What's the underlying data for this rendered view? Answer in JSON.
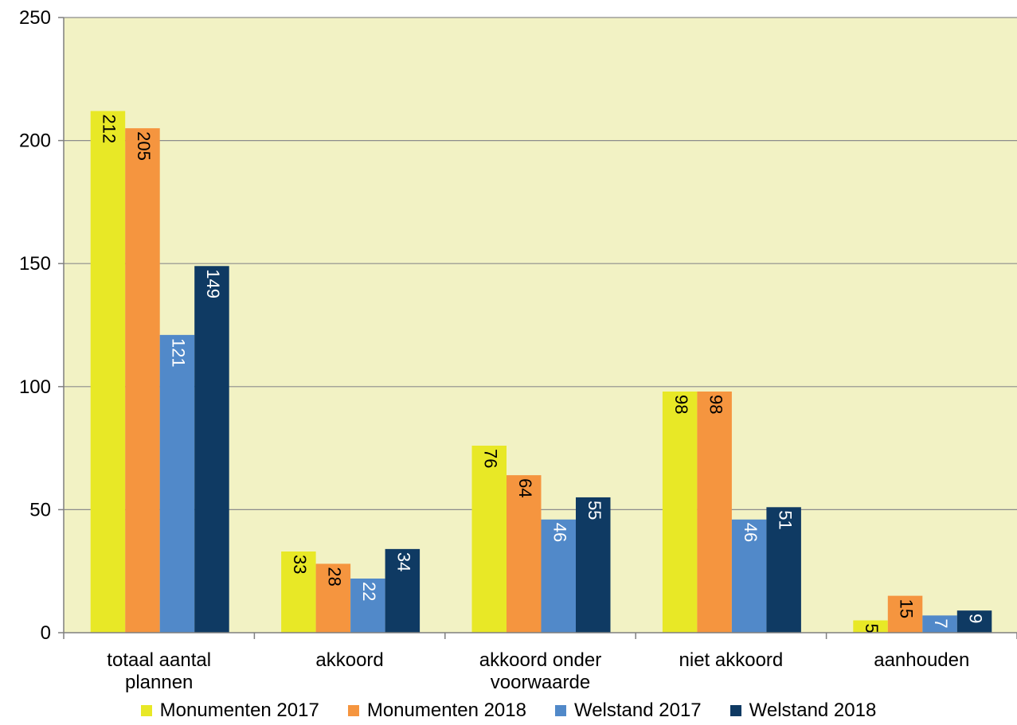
{
  "chart_data": {
    "type": "bar",
    "categories": [
      "totaal aantal plannen",
      "akkoord",
      "akkoord onder voorwaarde",
      "niet akkoord",
      "aanhouden"
    ],
    "category_lines": [
      [
        "totaal aantal",
        "plannen"
      ],
      [
        "akkoord"
      ],
      [
        "akkoord onder",
        "voorwaarde"
      ],
      [
        "niet akkoord"
      ],
      [
        "aanhouden"
      ]
    ],
    "series": [
      {
        "name": "Monumenten 2017",
        "color": "#E8E826",
        "label_color": "#000000",
        "values": [
          212,
          33,
          76,
          98,
          5
        ]
      },
      {
        "name": "Monumenten 2018",
        "color": "#F5953F",
        "label_color": "#000000",
        "values": [
          205,
          28,
          64,
          98,
          15
        ]
      },
      {
        "name": "Welstand 2017",
        "color": "#5189C9",
        "label_color": "#FFFFFF",
        "values": [
          121,
          22,
          46,
          46,
          7
        ]
      },
      {
        "name": "Welstand 2018",
        "color": "#0F3A63",
        "label_color": "#FFFFFF",
        "values": [
          149,
          34,
          55,
          51,
          9
        ]
      }
    ],
    "ylim": [
      0,
      250
    ],
    "yticks": [
      0,
      50,
      100,
      150,
      200,
      250
    ],
    "grid": true,
    "plot_background": "#F2F2C4",
    "legend_position": "bottom",
    "title": "",
    "xlabel": "",
    "ylabel": ""
  }
}
